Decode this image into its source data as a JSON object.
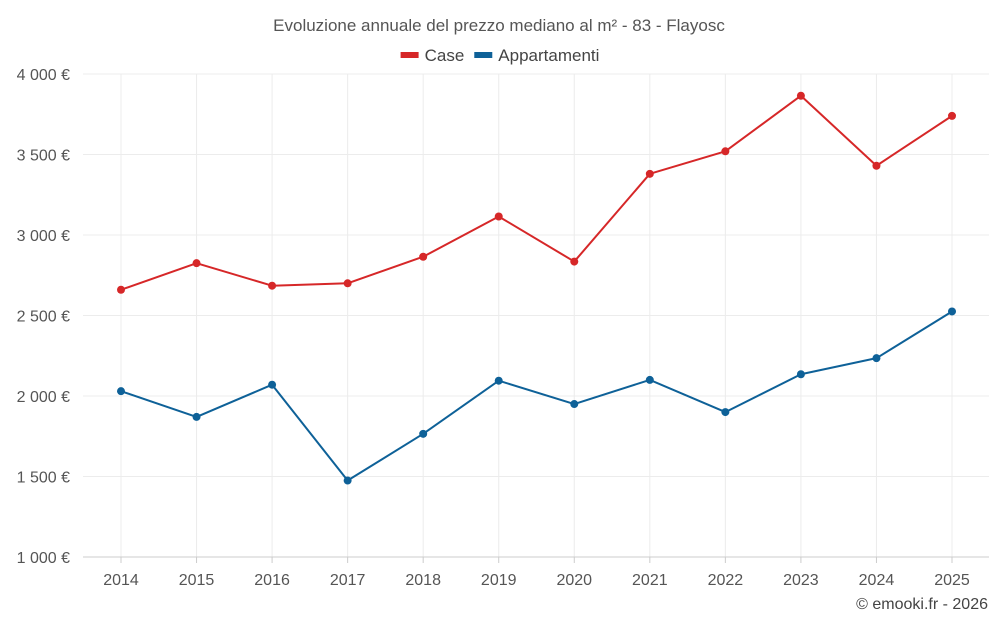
{
  "chart_data": {
    "type": "line",
    "title": "Evoluzione annuale del prezzo mediano al m² - 83 - Flayosc",
    "categories": [
      "2014",
      "2015",
      "2016",
      "2017",
      "2018",
      "2019",
      "2020",
      "2021",
      "2022",
      "2023",
      "2024",
      "2025"
    ],
    "series": [
      {
        "name": "Case",
        "color": "#d62728",
        "values": [
          2660,
          2825,
          2685,
          2700,
          2865,
          3115,
          2835,
          3380,
          3520,
          3865,
          3430,
          3740
        ]
      },
      {
        "name": "Appartamenti",
        "color": "#0e6198",
        "values": [
          2030,
          1870,
          2070,
          1475,
          1765,
          2095,
          1950,
          2100,
          1900,
          2135,
          2235,
          2525
        ]
      }
    ],
    "ylim": [
      1000,
      4000
    ],
    "yticks": [
      1000,
      1500,
      2000,
      2500,
      3000,
      3500,
      4000
    ],
    "ytick_labels": [
      "1 000 €",
      "1 500 €",
      "2 000 €",
      "2 500 €",
      "3 000 €",
      "3 500 €",
      "4 000 €"
    ],
    "grid": true,
    "legend_position": "top-center"
  },
  "credit": "© emooki.fr - 2026"
}
